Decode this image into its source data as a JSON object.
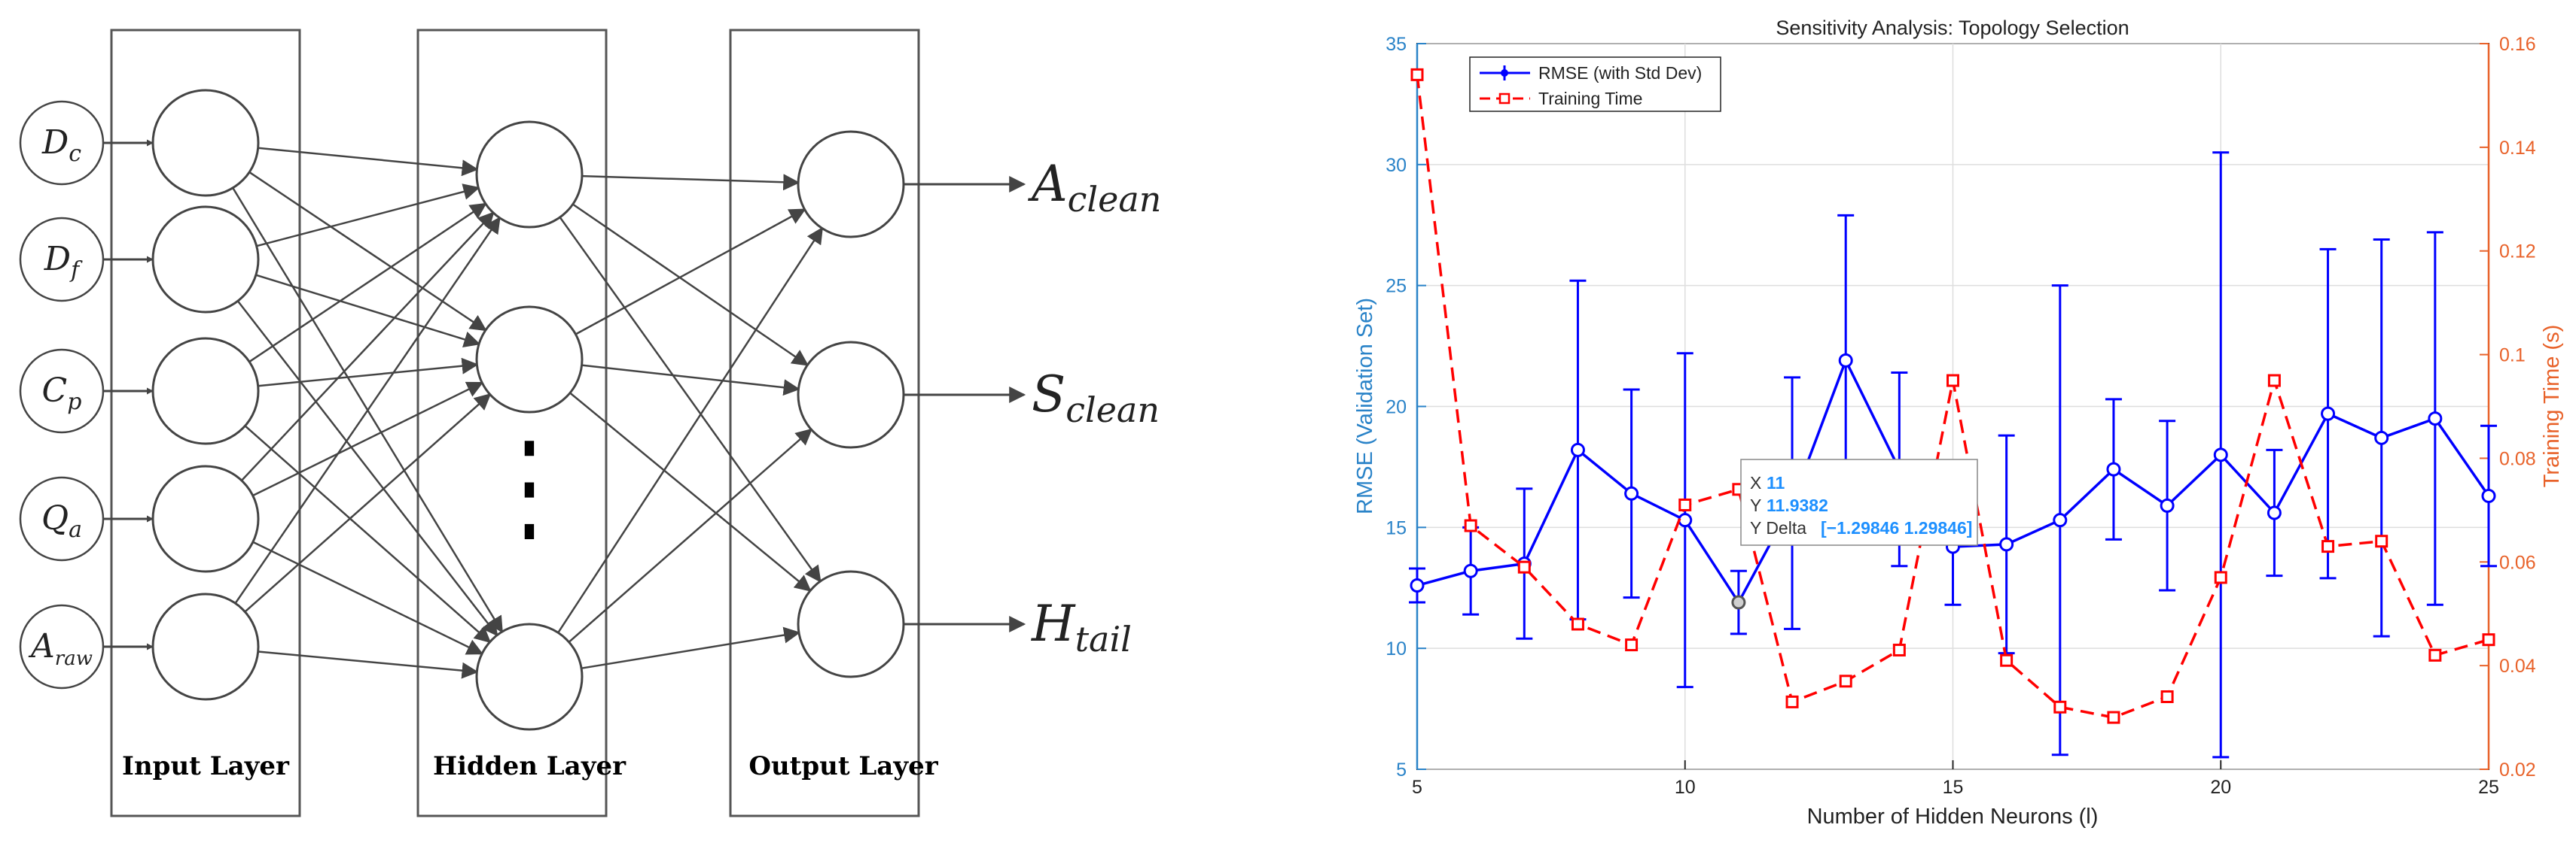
{
  "diagram": {
    "inputs": [
      {
        "base": "D",
        "sub": "c"
      },
      {
        "base": "D",
        "sub": "f"
      },
      {
        "base": "C",
        "sub": "p"
      },
      {
        "base": "Q",
        "sub": "a"
      },
      {
        "base": "A",
        "sub": "raw"
      }
    ],
    "outputs": [
      {
        "base": "A",
        "sub": "clean"
      },
      {
        "base": "S",
        "sub": "clean"
      },
      {
        "base": "H",
        "sub": "tail"
      }
    ],
    "layer_labels": {
      "input": "Input Layer",
      "hidden": "Hidden Layer",
      "output": "Output Layer"
    },
    "ellipsis": "⋮"
  },
  "chart_data": {
    "type": "line",
    "title": "Sensitivity Analysis: Topology Selection",
    "xlabel": "Number of Hidden Neurons (l)",
    "ylabel_left": "RMSE (Validation Set)",
    "ylabel_right": "Training Time (s)",
    "xlim": [
      5,
      25
    ],
    "ylim_left": [
      5,
      35
    ],
    "ylim_right": [
      0.02,
      0.16
    ],
    "xticks": [
      5,
      10,
      15,
      20,
      25
    ],
    "yticks_left": [
      5,
      10,
      15,
      20,
      25,
      30,
      35
    ],
    "yticks_right": [
      "0.02",
      "0.04",
      "0.06",
      "0.08",
      "0.1",
      "0.12",
      "0.14",
      "0.16"
    ],
    "grid": true,
    "legend_position": "top-left",
    "x": [
      5,
      6,
      7,
      8,
      9,
      10,
      11,
      12,
      13,
      14,
      15,
      16,
      17,
      18,
      19,
      20,
      21,
      22,
      23,
      24,
      25
    ],
    "series": [
      {
        "name": "RMSE (with Std Dev)",
        "axis": "left",
        "color": "#0000ff",
        "marker": "circle",
        "values": [
          12.6,
          13.2,
          13.5,
          18.2,
          16.4,
          15.3,
          11.9,
          16.0,
          21.9,
          17.4,
          14.2,
          14.3,
          15.3,
          17.4,
          15.9,
          18.0,
          15.6,
          19.7,
          18.7,
          19.5,
          16.3
        ],
        "std": [
          0.7,
          1.8,
          3.1,
          7.0,
          4.3,
          6.9,
          1.3,
          5.2,
          6.0,
          4.0,
          2.4,
          4.5,
          9.7,
          2.9,
          3.5,
          12.5,
          2.6,
          6.8,
          8.2,
          7.7,
          2.9
        ]
      },
      {
        "name": "Training Time",
        "axis": "right",
        "color": "#ff0000",
        "marker": "square",
        "dashed": true,
        "values": [
          0.154,
          0.067,
          0.059,
          0.048,
          0.044,
          0.071,
          0.074,
          0.033,
          0.037,
          0.043,
          0.095,
          0.041,
          0.032,
          0.03,
          0.034,
          0.057,
          0.095,
          0.063,
          0.064,
          0.042,
          0.045
        ]
      }
    ],
    "datatip": {
      "x_label": "X",
      "x_value": "11",
      "y_label": "Y",
      "y_value": "11.9382",
      "delta_label": "Y Delta",
      "delta_value": "[−1.29846 1.29846]"
    },
    "colors": {
      "left_axis": "#2a83c8",
      "right_axis": "#e8622a"
    }
  }
}
